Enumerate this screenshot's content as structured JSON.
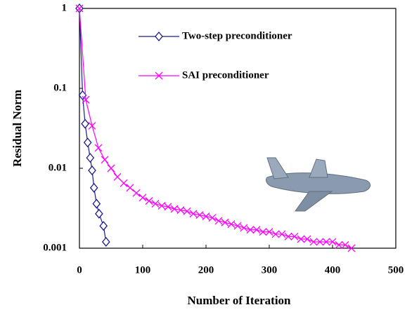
{
  "chart_data": {
    "type": "line",
    "xlabel": "Number of Iteration",
    "ylabel": "Residual Norm",
    "xlim": [
      0,
      500
    ],
    "xticks": [
      0,
      100,
      200,
      300,
      400,
      500
    ],
    "ylim": [
      0.001,
      1
    ],
    "yticks": [
      1,
      0.1,
      0.01,
      0.001
    ],
    "ylog": true,
    "legend": "top",
    "series": [
      {
        "name": "Two-step preconditioner",
        "color": "#1c1c8c",
        "marker": "diamond",
        "x": [
          0,
          5,
          9,
          13,
          17,
          20,
          23,
          27,
          31,
          38,
          42
        ],
        "values": [
          1,
          0.082,
          0.036,
          0.021,
          0.0135,
          0.0094,
          0.0057,
          0.0036,
          0.0027,
          0.0019,
          0.0012
        ]
      },
      {
        "name": "SAI preconditioner",
        "color": "#ff00ff",
        "marker": "x",
        "x": [
          0,
          10,
          20,
          30,
          40,
          50,
          60,
          70,
          80,
          90,
          100,
          110,
          120,
          130,
          140,
          150,
          160,
          170,
          180,
          190,
          200,
          210,
          220,
          230,
          240,
          250,
          260,
          270,
          280,
          290,
          300,
          310,
          320,
          330,
          340,
          350,
          360,
          370,
          380,
          390,
          400,
          410,
          420,
          430
        ],
        "values": [
          1,
          0.072,
          0.034,
          0.018,
          0.0128,
          0.01,
          0.0078,
          0.0065,
          0.0057,
          0.0049,
          0.0043,
          0.0039,
          0.0036,
          0.0034,
          0.0033,
          0.0031,
          0.003,
          0.0029,
          0.0027,
          0.0026,
          0.0025,
          0.0024,
          0.0022,
          0.0021,
          0.002,
          0.0019,
          0.0018,
          0.0017,
          0.0017,
          0.0016,
          0.0016,
          0.0015,
          0.0015,
          0.0014,
          0.0014,
          0.0013,
          0.0013,
          0.0012,
          0.0012,
          0.0012,
          0.0012,
          0.0011,
          0.0011,
          0.001
        ]
      }
    ]
  }
}
